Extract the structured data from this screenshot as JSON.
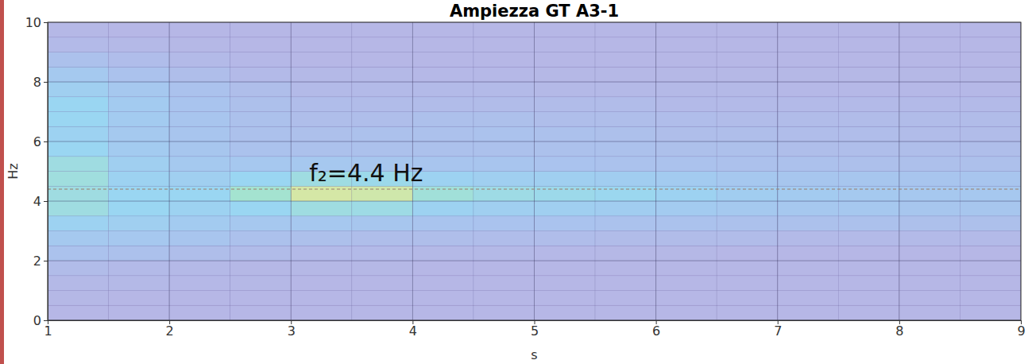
{
  "chart_data": {
    "type": "heatmap",
    "title": "Ampiezza GT A3-1",
    "x_label": "s",
    "y_label": "Hz",
    "xlim": [
      1,
      9
    ],
    "ylim": [
      0,
      10
    ],
    "xticks": [
      1,
      2,
      3,
      4,
      5,
      6,
      7,
      8,
      9
    ],
    "yticks": [
      0,
      2,
      4,
      6,
      8,
      10
    ],
    "grid": true,
    "zlim": [
      0,
      1
    ],
    "x": [
      1.25,
      1.75,
      2.25,
      2.75,
      3.25,
      3.75,
      4.25,
      4.75,
      5.25,
      5.75,
      6.25,
      6.75,
      7.25,
      7.75,
      8.25,
      8.75
    ],
    "y": [
      0.25,
      0.75,
      1.25,
      1.75,
      2.25,
      2.75,
      3.25,
      3.75,
      4.25,
      4.75,
      5.25,
      5.75,
      6.25,
      6.75,
      7.25,
      7.75,
      8.25,
      8.75,
      9.25,
      9.75
    ],
    "z": [
      [
        0.05,
        0.05,
        0.05,
        0.05,
        0.05,
        0.05,
        0.05,
        0.05,
        0.05,
        0.05,
        0.05,
        0.05,
        0.05,
        0.05,
        0.05,
        0.05
      ],
      [
        0.06,
        0.05,
        0.05,
        0.05,
        0.05,
        0.05,
        0.05,
        0.05,
        0.05,
        0.05,
        0.05,
        0.05,
        0.05,
        0.05,
        0.05,
        0.05
      ],
      [
        0.08,
        0.08,
        0.07,
        0.06,
        0.05,
        0.05,
        0.05,
        0.05,
        0.05,
        0.05,
        0.05,
        0.05,
        0.05,
        0.05,
        0.05,
        0.05
      ],
      [
        0.12,
        0.1,
        0.08,
        0.06,
        0.06,
        0.06,
        0.05,
        0.05,
        0.05,
        0.05,
        0.05,
        0.05,
        0.05,
        0.05,
        0.05,
        0.05
      ],
      [
        0.22,
        0.2,
        0.16,
        0.12,
        0.1,
        0.1,
        0.08,
        0.08,
        0.07,
        0.06,
        0.06,
        0.05,
        0.05,
        0.05,
        0.05,
        0.05
      ],
      [
        0.32,
        0.3,
        0.26,
        0.2,
        0.18,
        0.16,
        0.15,
        0.14,
        0.14,
        0.13,
        0.12,
        0.12,
        0.1,
        0.1,
        0.1,
        0.1
      ],
      [
        0.45,
        0.4,
        0.35,
        0.3,
        0.3,
        0.28,
        0.25,
        0.24,
        0.24,
        0.22,
        0.22,
        0.2,
        0.2,
        0.2,
        0.18,
        0.18
      ],
      [
        0.6,
        0.5,
        0.45,
        0.5,
        0.6,
        0.58,
        0.45,
        0.4,
        0.4,
        0.38,
        0.35,
        0.32,
        0.3,
        0.3,
        0.28,
        0.28
      ],
      [
        0.6,
        0.5,
        0.5,
        0.7,
        0.9,
        0.88,
        0.65,
        0.58,
        0.55,
        0.52,
        0.45,
        0.38,
        0.35,
        0.32,
        0.3,
        0.3
      ],
      [
        0.62,
        0.45,
        0.4,
        0.5,
        0.6,
        0.55,
        0.45,
        0.4,
        0.4,
        0.38,
        0.35,
        0.3,
        0.28,
        0.28,
        0.26,
        0.26
      ],
      [
        0.6,
        0.4,
        0.32,
        0.3,
        0.3,
        0.28,
        0.26,
        0.26,
        0.24,
        0.22,
        0.22,
        0.2,
        0.2,
        0.18,
        0.18,
        0.18
      ],
      [
        0.5,
        0.35,
        0.28,
        0.22,
        0.2,
        0.2,
        0.2,
        0.2,
        0.2,
        0.2,
        0.18,
        0.18,
        0.16,
        0.15,
        0.15,
        0.15
      ],
      [
        0.45,
        0.32,
        0.26,
        0.2,
        0.18,
        0.2,
        0.2,
        0.22,
        0.2,
        0.18,
        0.16,
        0.15,
        0.14,
        0.14,
        0.13,
        0.13
      ],
      [
        0.5,
        0.35,
        0.26,
        0.2,
        0.16,
        0.16,
        0.18,
        0.18,
        0.16,
        0.15,
        0.14,
        0.13,
        0.12,
        0.12,
        0.12,
        0.12
      ],
      [
        0.5,
        0.35,
        0.25,
        0.18,
        0.14,
        0.12,
        0.12,
        0.12,
        0.12,
        0.12,
        0.1,
        0.1,
        0.1,
        0.1,
        0.1,
        0.1
      ],
      [
        0.4,
        0.3,
        0.22,
        0.15,
        0.1,
        0.1,
        0.1,
        0.1,
        0.08,
        0.08,
        0.08,
        0.08,
        0.07,
        0.07,
        0.07,
        0.07
      ],
      [
        0.32,
        0.22,
        0.15,
        0.1,
        0.08,
        0.08,
        0.07,
        0.07,
        0.06,
        0.06,
        0.06,
        0.06,
        0.06,
        0.06,
        0.06,
        0.06
      ],
      [
        0.2,
        0.14,
        0.1,
        0.07,
        0.05,
        0.05,
        0.05,
        0.05,
        0.05,
        0.05,
        0.05,
        0.05,
        0.05,
        0.05,
        0.05,
        0.05
      ],
      [
        0.1,
        0.08,
        0.06,
        0.05,
        0.05,
        0.05,
        0.05,
        0.05,
        0.05,
        0.05,
        0.05,
        0.05,
        0.05,
        0.05,
        0.05,
        0.05
      ],
      [
        0.06,
        0.05,
        0.05,
        0.05,
        0.05,
        0.05,
        0.05,
        0.05,
        0.05,
        0.05,
        0.05,
        0.05,
        0.05,
        0.05,
        0.05,
        0.05
      ]
    ],
    "annotations": [
      {
        "text": "f₂=4.4 Hz",
        "x": 3.15,
        "y": 4.4
      }
    ]
  }
}
